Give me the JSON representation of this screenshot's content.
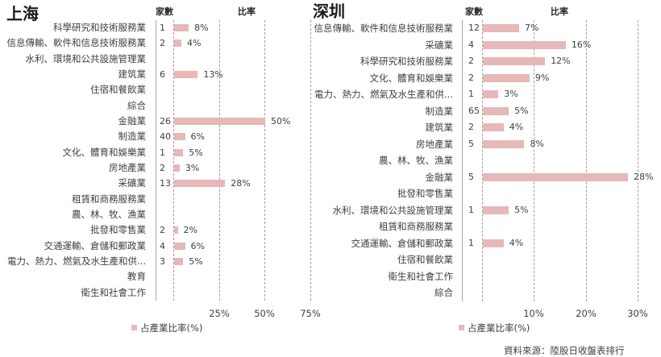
{
  "colors": {
    "bar": "#e6b8b7",
    "grid": "#a0a0a0",
    "axis": "#a6a6a6",
    "text": "#404040"
  },
  "source_note": "資料來源：陸股日收盤表排行",
  "panels": [
    {
      "title": "上海",
      "count_header": "家數",
      "ratio_header": "比率",
      "legend_label": "占產業比率(%)",
      "rows": [
        {
          "industry": "科學研究和技術服務業",
          "count": "1",
          "ratio": "8%"
        },
        {
          "industry": "信息傳輸、軟件和信息技術服務業",
          "count": "2",
          "ratio": "4%"
        },
        {
          "industry": "水利、環境和公共設施管理業",
          "count": null,
          "ratio": null
        },
        {
          "industry": "建筑業",
          "count": "6",
          "ratio": "13%"
        },
        {
          "industry": "住宿和餐飲業",
          "count": null,
          "ratio": null
        },
        {
          "industry": "綜合",
          "count": null,
          "ratio": null
        },
        {
          "industry": "金融業",
          "count": "26",
          "ratio": "50%"
        },
        {
          "industry": "制造業",
          "count": "40",
          "ratio": "6%"
        },
        {
          "industry": "文化、體育和娛樂業",
          "count": "1",
          "ratio": "5%"
        },
        {
          "industry": "房地產業",
          "count": "2",
          "ratio": "3%"
        },
        {
          "industry": "采礦業",
          "count": "13",
          "ratio": "28%"
        },
        {
          "industry": "租賃和商務服務業",
          "count": null,
          "ratio": null
        },
        {
          "industry": "農、林、牧、漁業",
          "count": null,
          "ratio": null
        },
        {
          "industry": "批發和零售業",
          "count": "2",
          "ratio": "2%"
        },
        {
          "industry": "交通運輸、倉儲和郵政業",
          "count": "4",
          "ratio": "6%"
        },
        {
          "industry": "電力、熱力、燃氣及水生產和供...",
          "count": "3",
          "ratio": "5%"
        },
        {
          "industry": "教育",
          "count": null,
          "ratio": null
        },
        {
          "industry": "衛生和社會工作",
          "count": null,
          "ratio": null
        }
      ]
    },
    {
      "title": "深圳",
      "count_header": "家數",
      "ratio_header": "比率",
      "legend_label": "占產業比率(%)",
      "rows": [
        {
          "industry": "信息傳輸、軟件和信息技術服務業",
          "count": "12",
          "ratio": "7%"
        },
        {
          "industry": "采礦業",
          "count": "4",
          "ratio": "16%"
        },
        {
          "industry": "科學研究和技術服務業",
          "count": "2",
          "ratio": "12%"
        },
        {
          "industry": "文化、體育和娛樂業",
          "count": "2",
          "ratio": "9%"
        },
        {
          "industry": "電力、熱力、燃氣及水生產和供...",
          "count": "1",
          "ratio": "3%"
        },
        {
          "industry": "制造業",
          "count": "65",
          "ratio": "5%"
        },
        {
          "industry": "建筑業",
          "count": "2",
          "ratio": "4%"
        },
        {
          "industry": "房地產業",
          "count": "5",
          "ratio": "8%"
        },
        {
          "industry": "農、林、牧、漁業",
          "count": null,
          "ratio": null
        },
        {
          "industry": "金融業",
          "count": "5",
          "ratio": "28%"
        },
        {
          "industry": "批發和零售業",
          "count": null,
          "ratio": null
        },
        {
          "industry": "水利、環境和公共設施管理業",
          "count": "1",
          "ratio": "5%"
        },
        {
          "industry": "租賃和商務服務業",
          "count": null,
          "ratio": null
        },
        {
          "industry": "交通運輸、倉儲和郵政業",
          "count": "1",
          "ratio": "4%"
        },
        {
          "industry": "住宿和餐飲業",
          "count": null,
          "ratio": null
        },
        {
          "industry": "衛生和社會工作",
          "count": null,
          "ratio": null
        },
        {
          "industry": "綜合",
          "count": null,
          "ratio": null
        }
      ]
    }
  ],
  "chart_data": [
    {
      "type": "bar",
      "orientation": "horizontal",
      "title": "上海",
      "categories": [
        "科學研究和技術服務業",
        "信息傳輸、軟件和信息技術服務業",
        "水利、環境和公共設施管理業",
        "建筑業",
        "住宿和餐飲業",
        "綜合",
        "金融業",
        "制造業",
        "文化、體育和娛樂業",
        "房地產業",
        "采礦業",
        "租賃和商務服務業",
        "農、林、牧、漁業",
        "批發和零售業",
        "交通運輸、倉儲和郵政業",
        "電力、熱力、燃氣及水生產和供...",
        "教育",
        "衛生和社會工作"
      ],
      "series": [
        {
          "name": "家數",
          "values": [
            1,
            2,
            null,
            6,
            null,
            null,
            26,
            40,
            1,
            2,
            13,
            null,
            null,
            2,
            4,
            3,
            null,
            null
          ]
        },
        {
          "name": "占產業比率(%)",
          "values": [
            8,
            4,
            null,
            13,
            null,
            null,
            50,
            6,
            5,
            3,
            28,
            null,
            null,
            2,
            6,
            5,
            null,
            null
          ]
        }
      ],
      "xlabel": "",
      "ylabel": "",
      "xlim": [
        0,
        75
      ],
      "tick_values": [
        25,
        50,
        75
      ],
      "xticks": [
        "25%",
        "50%",
        "75%"
      ],
      "grid": true,
      "legend_position": "bottom"
    },
    {
      "type": "bar",
      "orientation": "horizontal",
      "title": "深圳",
      "categories": [
        "信息傳輸、軟件和信息技術服務業",
        "采礦業",
        "科學研究和技術服務業",
        "文化、體育和娛樂業",
        "電力、熱力、燃氣及水生產和供...",
        "制造業",
        "建筑業",
        "房地產業",
        "農、林、牧、漁業",
        "金融業",
        "批發和零售業",
        "水利、環境和公共設施管理業",
        "租賃和商務服務業",
        "交通運輸、倉儲和郵政業",
        "住宿和餐飲業",
        "衛生和社會工作",
        "綜合"
      ],
      "series": [
        {
          "name": "家數",
          "values": [
            12,
            4,
            2,
            2,
            1,
            65,
            2,
            5,
            null,
            5,
            null,
            1,
            null,
            1,
            null,
            null,
            null
          ]
        },
        {
          "name": "占產業比率(%)",
          "values": [
            7,
            16,
            12,
            9,
            3,
            5,
            4,
            8,
            null,
            28,
            null,
            5,
            null,
            4,
            null,
            null,
            null
          ]
        }
      ],
      "xlabel": "",
      "ylabel": "",
      "xlim": [
        0,
        30
      ],
      "tick_values": [
        10,
        20,
        30
      ],
      "xticks": [
        "10%",
        "20%",
        "30%"
      ],
      "grid": true,
      "legend_position": "bottom"
    }
  ]
}
